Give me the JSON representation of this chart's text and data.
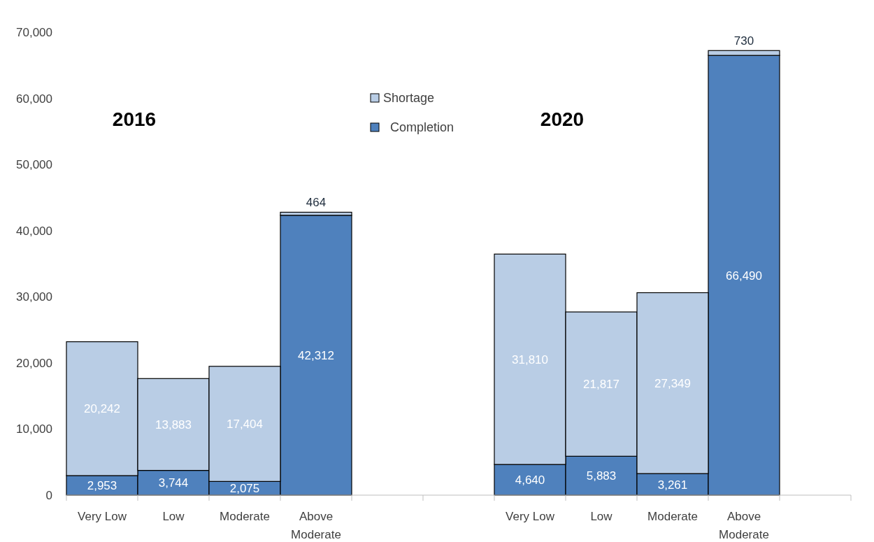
{
  "chart_data": {
    "type": "bar",
    "stacked": true,
    "categories": [
      "Very Low",
      "Low",
      "Moderate",
      "Above Moderate",
      null,
      null,
      "Very Low",
      "Low",
      "Moderate",
      "Above Moderate",
      null
    ],
    "series": [
      {
        "name": "Completion",
        "color": "#4f81bd",
        "values": [
          2953,
          3744,
          2075,
          42312,
          null,
          null,
          4640,
          5883,
          3261,
          66490,
          null
        ],
        "value_labels": [
          "2,953",
          "3,744",
          "2,075",
          "42,312",
          null,
          null,
          "4,640",
          "5,883",
          "3,261",
          "66,490",
          null
        ]
      },
      {
        "name": "Shortage",
        "color": "#b9cde5",
        "values": [
          20242,
          13883,
          17404,
          464,
          null,
          null,
          31810,
          21817,
          27349,
          730,
          null
        ],
        "value_labels": [
          "20,242",
          "13,883",
          "17,404",
          "464",
          null,
          null,
          "31,810",
          "21,817",
          "27,349",
          "730",
          null
        ]
      }
    ],
    "ylim": [
      0,
      70000
    ],
    "yticks": [
      {
        "value": 0,
        "label": "0"
      },
      {
        "value": 10000,
        "label": "10,000"
      },
      {
        "value": 20000,
        "label": "20,000"
      },
      {
        "value": 30000,
        "label": "30,000"
      },
      {
        "value": 40000,
        "label": "40,000"
      },
      {
        "value": 50000,
        "label": "50,000"
      },
      {
        "value": 60000,
        "label": "60,000"
      },
      {
        "value": 70000,
        "label": "70,000"
      }
    ],
    "legend": "top",
    "grid": false,
    "annotations": [
      "2016",
      "2020"
    ]
  }
}
